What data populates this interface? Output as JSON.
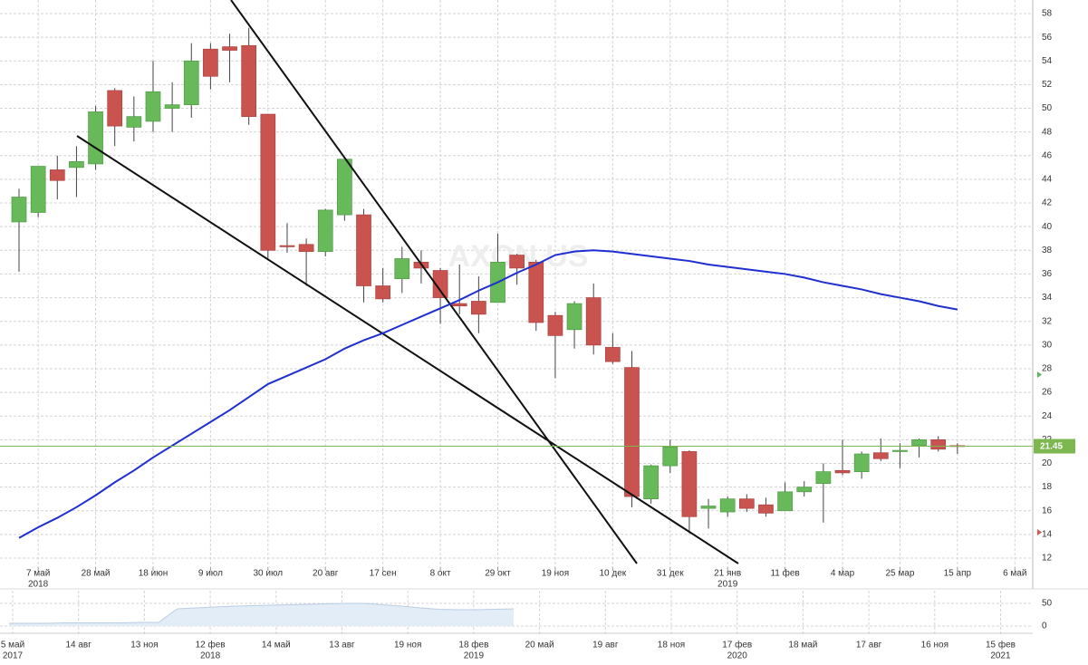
{
  "chart_data": {
    "type": "candlestick",
    "watermark": "AXON US",
    "up_color": "#67b95a",
    "down_color": "#c9534f",
    "open": [
      40.4,
      41.2,
      44.8,
      45.0,
      45.3,
      51.5,
      48.4,
      48.9,
      50.0,
      50.3,
      55.0,
      55.2,
      55.3,
      49.5,
      38.4,
      38.5,
      37.9,
      41.0,
      41.0,
      35.0,
      35.6,
      37.0,
      36.3,
      33.5,
      33.7,
      33.6,
      37.6,
      37.0,
      32.5,
      31.3,
      34.0,
      29.8,
      28.1,
      17.0,
      19.8,
      21.0,
      16.2,
      15.9,
      17.0,
      16.5,
      16.0,
      17.6,
      18.3,
      19.4,
      19.3,
      20.9,
      21.0,
      21.5,
      22.0,
      21.5
    ],
    "high": [
      43.2,
      45.1,
      46.0,
      46.8,
      50.2,
      51.7,
      51.0,
      54.0,
      52.2,
      55.5,
      55.5,
      56.3,
      56.8,
      49.5,
      40.3,
      39.0,
      41.5,
      45.7,
      41.5,
      36.5,
      38.3,
      38.0,
      36.5,
      36.8,
      35.8,
      39.4,
      37.7,
      37.2,
      32.8,
      33.7,
      35.2,
      31.0,
      29.5,
      19.9,
      22.0,
      21.1,
      17.0,
      17.2,
      17.4,
      17.1,
      18.4,
      18.5,
      20.0,
      22.0,
      21.0,
      22.1,
      21.7,
      22.1,
      22.3,
      21.7
    ],
    "low": [
      36.2,
      40.8,
      42.3,
      42.5,
      44.8,
      46.8,
      47.2,
      48.0,
      48.0,
      49.2,
      51.6,
      52.2,
      48.6,
      37.2,
      37.8,
      35.0,
      37.5,
      40.5,
      33.6,
      33.6,
      34.4,
      35.2,
      31.8,
      32.6,
      31.0,
      33.6,
      35.1,
      31.2,
      27.2,
      29.7,
      29.2,
      28.4,
      16.3,
      16.6,
      19.2,
      14.1,
      14.5,
      15.5,
      15.9,
      15.5,
      16.0,
      17.2,
      15.0,
      19.0,
      18.7,
      20.2,
      19.6,
      20.5,
      21.0,
      20.8
    ],
    "close": [
      42.5,
      45.1,
      43.9,
      45.5,
      49.7,
      48.5,
      49.3,
      51.4,
      50.3,
      54.0,
      52.7,
      54.9,
      49.3,
      38.0,
      38.3,
      37.9,
      41.4,
      45.7,
      35.0,
      33.9,
      37.3,
      36.5,
      34.0,
      33.3,
      32.6,
      37.0,
      36.5,
      31.9,
      30.8,
      33.5,
      30.0,
      28.6,
      17.2,
      19.8,
      21.4,
      15.5,
      16.4,
      17.0,
      16.2,
      15.8,
      17.6,
      18.0,
      19.3,
      19.2,
      20.8,
      20.4,
      21.1,
      22.0,
      21.2,
      21.45
    ],
    "series": [
      {
        "name": "MA",
        "color": "#1f2fd0",
        "values": [
          13.7,
          14.6,
          15.4,
          16.3,
          17.3,
          18.4,
          19.4,
          20.5,
          21.5,
          22.5,
          23.5,
          24.5,
          25.6,
          26.7,
          27.4,
          28.1,
          28.8,
          29.7,
          30.4,
          31.0,
          31.7,
          32.4,
          33.1,
          33.8,
          34.6,
          35.3,
          36.1,
          36.8,
          37.6,
          37.9,
          38.0,
          37.9,
          37.7,
          37.5,
          37.3,
          37.1,
          36.8,
          36.6,
          36.4,
          36.2,
          36.0,
          35.7,
          35.3,
          35.0,
          34.7,
          34.3,
          34.0,
          33.7,
          33.3,
          33.0
        ]
      }
    ],
    "current_price": 21.45,
    "current_color": "#7cb84f",
    "x_labels": [
      {
        "label": "7 май",
        "year": "2018"
      },
      {
        "label": "28 май"
      },
      {
        "label": "18 июн"
      },
      {
        "label": "9 июл"
      },
      {
        "label": "30 июл"
      },
      {
        "label": "20 авг"
      },
      {
        "label": "17 сен"
      },
      {
        "label": "8 окт"
      },
      {
        "label": "29 окт"
      },
      {
        "label": "19 ноя"
      },
      {
        "label": "10 дек"
      },
      {
        "label": "31 дек"
      },
      {
        "label": "21 янв",
        "year": "2019"
      },
      {
        "label": "11 фев"
      },
      {
        "label": "4 мар"
      },
      {
        "label": "25 мар"
      },
      {
        "label": "15 апр"
      },
      {
        "label": "6 май"
      }
    ],
    "ylim": [
      12,
      58
    ],
    "yticks": [
      12,
      14,
      16,
      18,
      20,
      22,
      24,
      26,
      28,
      30,
      32,
      34,
      36,
      38,
      40,
      42,
      44,
      46,
      48,
      50,
      52,
      54,
      56,
      58
    ],
    "grid": true,
    "navigator": {
      "type": "area",
      "values": [
        6,
        6,
        6,
        7,
        7,
        7,
        7,
        8,
        8,
        38,
        40,
        42,
        44,
        45,
        46,
        47,
        48,
        49,
        50,
        50,
        47,
        44,
        40,
        37,
        36,
        36,
        37,
        38
      ],
      "ylim": [
        0,
        50
      ],
      "yticks": [
        0,
        50
      ],
      "x_labels": [
        {
          "label": "5 май",
          "year": "2017"
        },
        {
          "label": "14 авг"
        },
        {
          "label": "13 ноя"
        },
        {
          "label": "12 фев",
          "year": "2018"
        },
        {
          "label": "14 май"
        },
        {
          "label": "13 авг"
        },
        {
          "label": "19 ноя"
        },
        {
          "label": "18 фев",
          "year": "2019"
        },
        {
          "label": "20 май"
        },
        {
          "label": "19 авг"
        },
        {
          "label": "18 ноя"
        },
        {
          "label": "17 фев",
          "year": "2020"
        },
        {
          "label": "18 май"
        },
        {
          "label": "17 авг"
        },
        {
          "label": "16 ноя"
        },
        {
          "label": "15 фев",
          "year": "2021"
        }
      ]
    }
  }
}
